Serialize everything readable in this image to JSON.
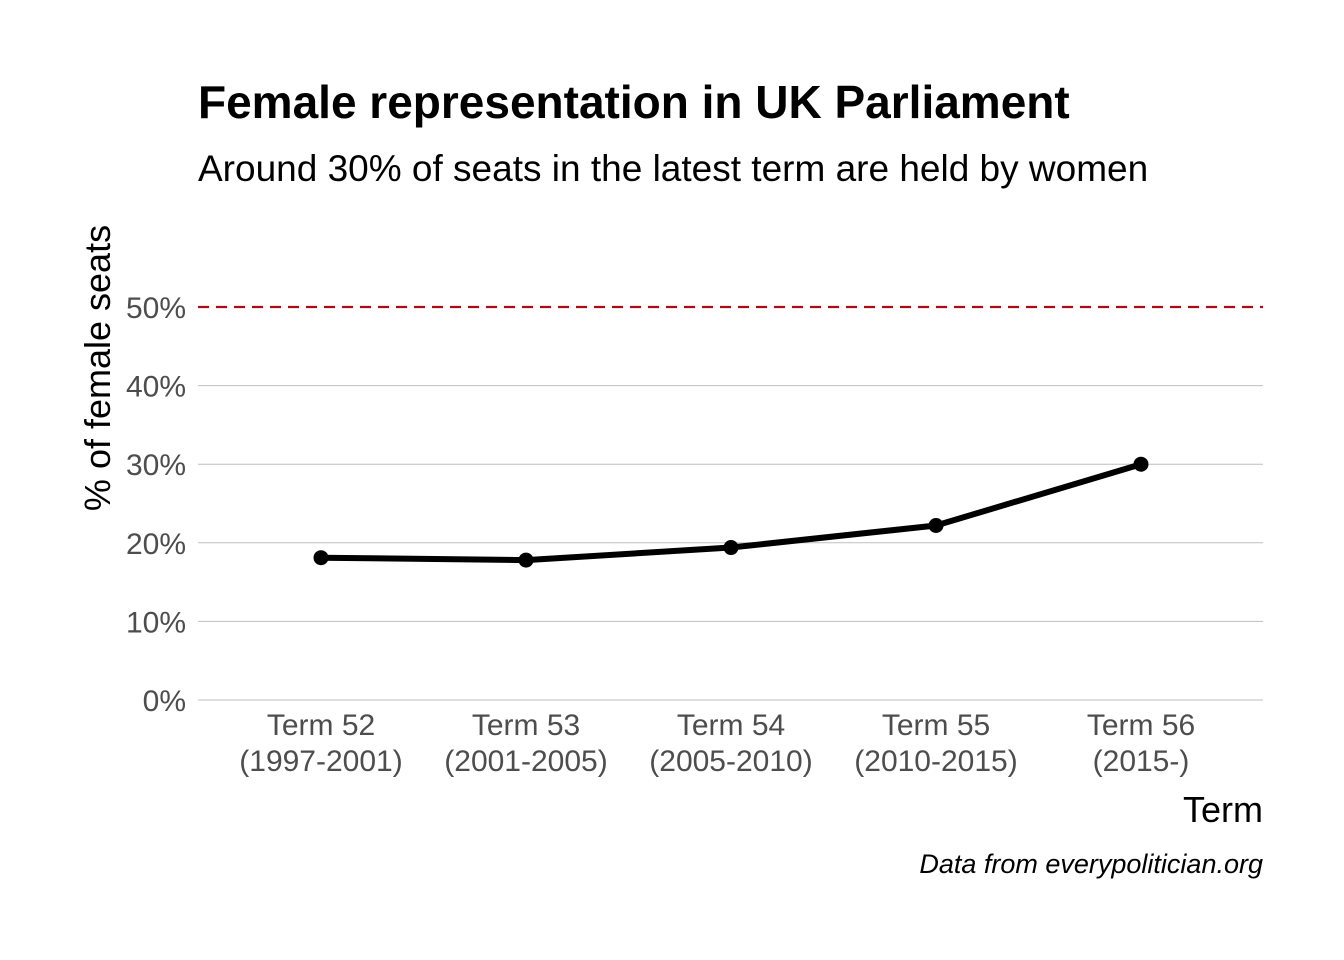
{
  "chart_data": {
    "type": "line",
    "title": "Female representation in UK Parliament",
    "subtitle": "Around 30% of seats in the latest term are held by women",
    "xlabel": "Term",
    "ylabel": "% of female seats",
    "caption": "Data from everypolitician.org",
    "categories": [
      [
        "Term 52",
        "(1997-2001)"
      ],
      [
        "Term 53",
        "(2001-2005)"
      ],
      [
        "Term 54",
        "(2005-2010)"
      ],
      [
        "Term 55",
        "(2010-2015)"
      ],
      [
        "Term 56",
        "(2015-)"
      ]
    ],
    "series": [
      {
        "values": [
          18.1,
          17.8,
          19.4,
          22.2,
          30.0
        ],
        "color": "#000000"
      }
    ],
    "yticks": [
      0,
      10,
      20,
      30,
      40,
      50
    ],
    "ytick_labels": [
      "0%",
      "10%",
      "20%",
      "30%",
      "40%",
      "50%"
    ],
    "ylim": [
      0,
      50
    ],
    "reference_line": {
      "value": 50,
      "style": "dashed",
      "color": "#a50f15"
    },
    "grid": "horizontal",
    "legend": "none"
  }
}
